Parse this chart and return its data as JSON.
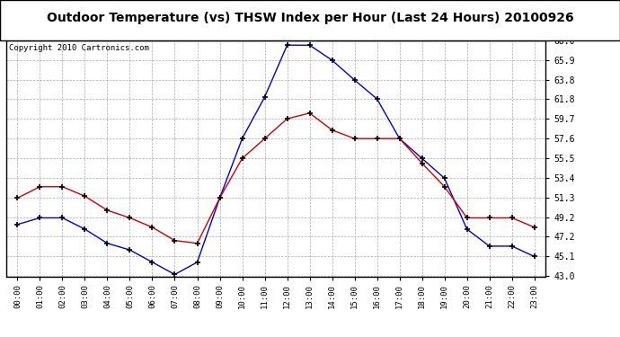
{
  "title": "Outdoor Temperature (vs) THSW Index per Hour (Last 24 Hours) 20100926",
  "copyright": "Copyright 2010 Cartronics.com",
  "hours": [
    "00:00",
    "01:00",
    "02:00",
    "03:00",
    "04:00",
    "05:00",
    "06:00",
    "07:00",
    "08:00",
    "09:00",
    "10:00",
    "11:00",
    "12:00",
    "13:00",
    "14:00",
    "15:00",
    "16:00",
    "17:00",
    "18:00",
    "19:00",
    "20:00",
    "21:00",
    "22:00",
    "23:00"
  ],
  "temp_blue": [
    48.5,
    49.2,
    49.2,
    48.0,
    46.5,
    45.8,
    44.5,
    43.2,
    44.5,
    51.3,
    57.6,
    62.0,
    67.5,
    67.5,
    65.9,
    63.8,
    61.8,
    57.6,
    55.5,
    53.4,
    48.0,
    46.2,
    46.2,
    45.1
  ],
  "temp_red": [
    51.3,
    52.5,
    52.5,
    51.5,
    50.0,
    49.2,
    48.2,
    46.8,
    46.5,
    51.3,
    55.5,
    57.6,
    59.7,
    60.3,
    58.5,
    57.6,
    57.6,
    57.6,
    55.0,
    52.5,
    49.2,
    49.2,
    49.2,
    48.2
  ],
  "ylim": [
    43.0,
    68.0
  ],
  "yticks": [
    43.0,
    45.1,
    47.2,
    49.2,
    51.3,
    53.4,
    55.5,
    57.6,
    59.7,
    61.8,
    63.8,
    65.9,
    68.0
  ],
  "blue_color": "#0000CC",
  "red_color": "#CC0000",
  "bg_color": "#FFFFFF",
  "grid_color": "#AAAAAA",
  "title_fontsize": 10,
  "copyright_fontsize": 6.5
}
